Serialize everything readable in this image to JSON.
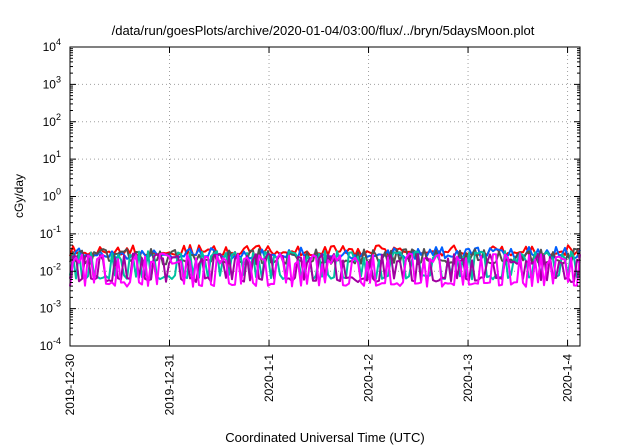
{
  "chart_data": {
    "type": "line",
    "title": "/data/run/goesPlots/archive/2020-01-04/03:00/flux/../bryn/5daysMoon.plot",
    "xlabel": "Coordinated Universal Time (UTC)",
    "ylabel": "cGy/day",
    "y_scale": "log",
    "ylim": [
      0.0001,
      10000
    ],
    "y_ticks": [
      {
        "base": "10",
        "exp": "-4"
      },
      {
        "base": "10",
        "exp": "-3"
      },
      {
        "base": "10",
        "exp": "-2"
      },
      {
        "base": "10",
        "exp": "-1"
      },
      {
        "base": "10",
        "exp": "0"
      },
      {
        "base": "10",
        "exp": "1"
      },
      {
        "base": "10",
        "exp": "2"
      },
      {
        "base": "10",
        "exp": "3"
      },
      {
        "base": "10",
        "exp": "4"
      }
    ],
    "xlim": [
      "2019-12-30T00:00",
      "2020-01-04T03:00"
    ],
    "x_ticks": [
      "2019-12-30",
      "2019-12-31",
      "2020-1-1",
      "2020-1-2",
      "2020-1-3",
      "2020-1-4"
    ],
    "grid": true,
    "legend": "none",
    "series": [
      {
        "color": "#ff0000",
        "base": 0.03,
        "spike_max": 0.05,
        "spike_prob": 0.3
      },
      {
        "color": "#0060ff",
        "base": 0.025,
        "spike_max": 0.045,
        "spike_prob": 0.3
      },
      {
        "color": "#505050",
        "base": 0.018,
        "spike_max": 0.04,
        "spike_prob": 0.4
      },
      {
        "color": "#00c0a0",
        "base": 0.007,
        "spike_max": 0.035,
        "spike_prob": 0.45
      },
      {
        "color": "#a000a0",
        "base": 0.006,
        "spike_max": 0.03,
        "spike_prob": 0.5
      },
      {
        "color": "#ff00ff",
        "base": 0.0045,
        "spike_max": 0.03,
        "spike_prob": 0.55
      }
    ]
  }
}
